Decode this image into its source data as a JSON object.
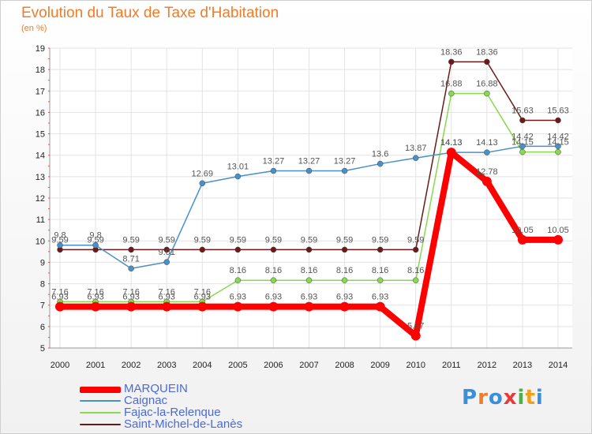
{
  "title": "Evolution du Taux de Taxe d'Habitation",
  "subtitle": "(en %)",
  "logo": "Proxiti",
  "chart_data": {
    "type": "line",
    "x": [
      "2000",
      "2001",
      "2002",
      "2003",
      "2004",
      "2005",
      "2006",
      "2007",
      "2008",
      "2009",
      "2010",
      "2011",
      "2012",
      "2013",
      "2014"
    ],
    "ylim": [
      5,
      19
    ],
    "yticks": [
      "5",
      "6",
      "7",
      "8",
      "9",
      "10",
      "11",
      "12",
      "13",
      "14",
      "15",
      "16",
      "17",
      "18",
      "19"
    ],
    "grid": true,
    "legend_position": "bottom-left",
    "series": [
      {
        "name": "MARQUEIN",
        "color": "#ff0000",
        "values": [
          6.93,
          6.93,
          6.93,
          6.93,
          6.93,
          6.93,
          6.93,
          6.93,
          6.93,
          6.93,
          5.57,
          14.13,
          12.78,
          10.05,
          10.05
        ],
        "labels": [
          "6.93",
          "6.93",
          "6.93",
          "6.93",
          "6.93",
          "6.93",
          "6.93",
          "6.93",
          "6.93",
          "6.93",
          "5.57",
          "14.13",
          "12.78",
          "10.05",
          "10.05"
        ]
      },
      {
        "name": "Caignac",
        "color": "#4a90c8",
        "values": [
          9.8,
          9.8,
          8.71,
          9.01,
          12.69,
          13.01,
          13.27,
          13.27,
          13.27,
          13.6,
          13.87,
          14.13,
          14.13,
          14.42,
          14.42
        ],
        "labels": [
          "9.8",
          "9.8",
          "8.71",
          "9.01",
          "12.69",
          "13.01",
          "13.27",
          "13.27",
          "13.27",
          "13.6",
          "13.87",
          "14.13",
          "14.13",
          "14.42",
          "14.42"
        ]
      },
      {
        "name": "Fajac-la-Relenque",
        "color": "#88d850",
        "values": [
          7.16,
          7.16,
          7.16,
          7.16,
          7.16,
          8.16,
          8.16,
          8.16,
          8.16,
          8.16,
          8.16,
          16.88,
          16.88,
          14.15,
          14.15
        ],
        "labels": [
          "7.16",
          "7.16",
          "7.16",
          "7.16",
          "7.16",
          "8.16",
          "8.16",
          "8.16",
          "8.16",
          "8.16",
          "8.16",
          "16.88",
          "16.88",
          "14.15",
          "14.15"
        ]
      },
      {
        "name": "Saint-Michel-de-Lanès",
        "color": "#6b1a1a",
        "values": [
          9.59,
          9.59,
          9.59,
          9.59,
          9.59,
          9.59,
          9.59,
          9.59,
          9.59,
          9.59,
          9.59,
          18.36,
          18.36,
          15.63,
          15.63
        ],
        "labels": [
          "9.59",
          "9.59",
          "9.59",
          "9.59",
          "9.59",
          "9.59",
          "9.59",
          "9.59",
          "9.59",
          "9.59",
          "9.59",
          "18.36",
          "18.36",
          "15.63",
          "15.63"
        ]
      }
    ]
  }
}
